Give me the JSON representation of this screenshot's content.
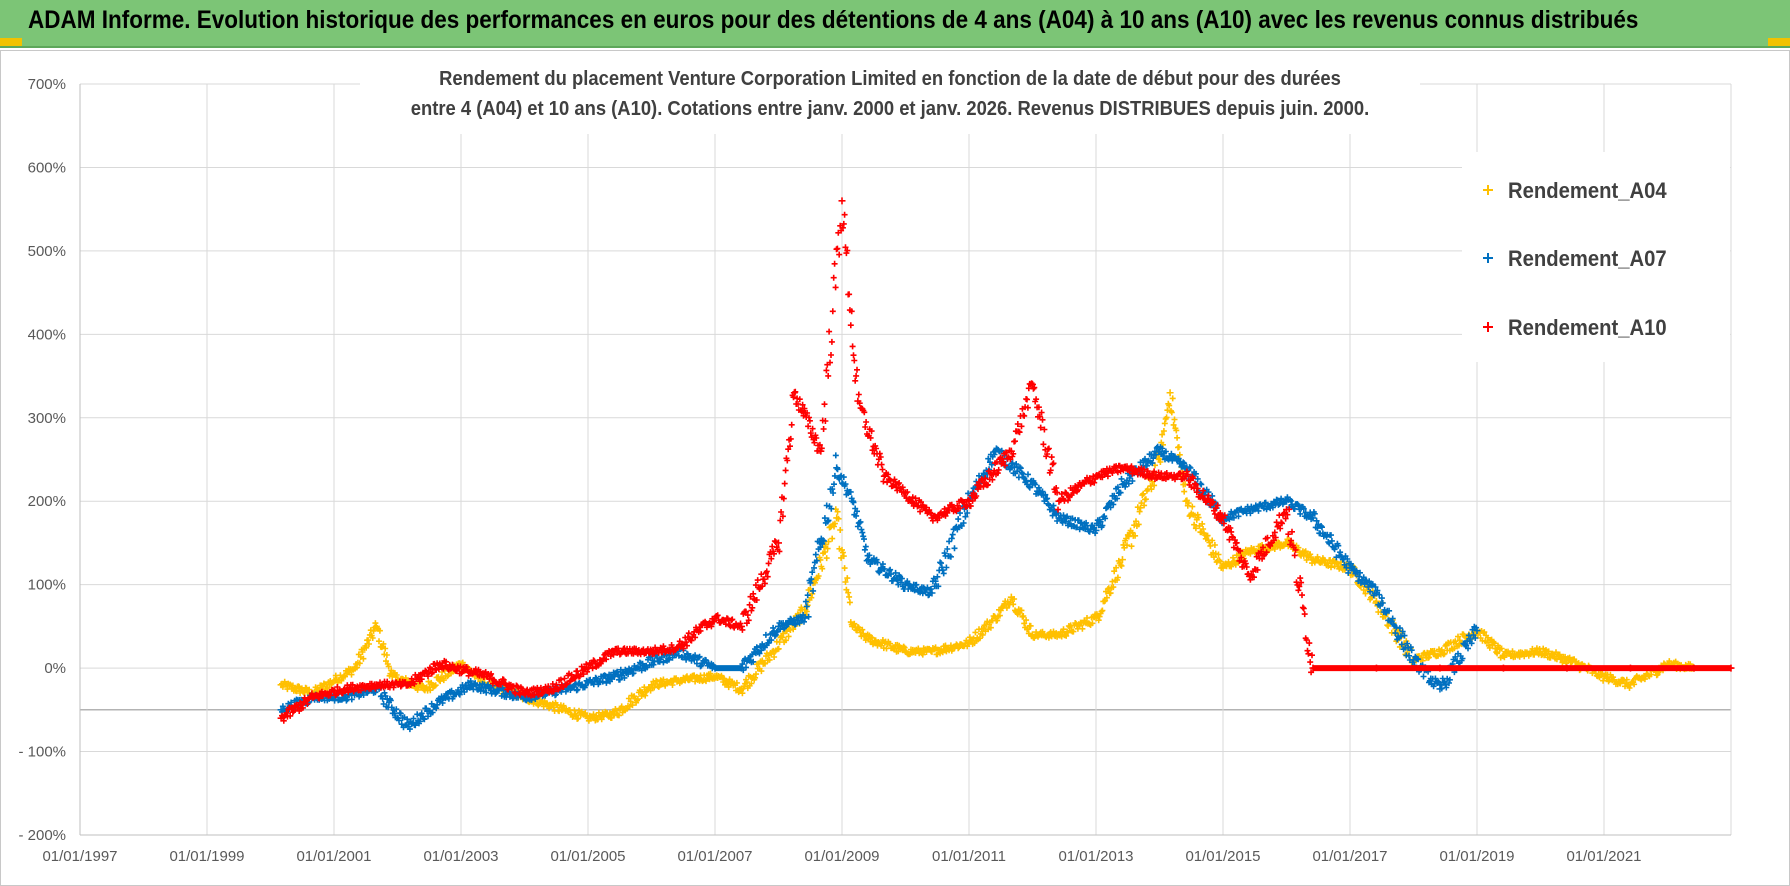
{
  "banner": {
    "title": "ADAM Informe. Evolution historique des performances en euros pour des détentions de 4 ans (A04) à 10 ans (A10) avec les revenus connus distribués"
  },
  "colors": {
    "banner": "#7cc576",
    "A04": "#ffc000",
    "A07": "#0070c0",
    "A10": "#ff0000",
    "grid": "#d9d9d9"
  },
  "chart_data": {
    "type": "scatter",
    "title_line1": "Rendement du placement Venture Corporation Limited en fonction de la date de début pour des durées",
    "title_line2": "entre 4 (A04) et 10 ans (A10). Cotations entre janv. 2000 et janv. 2026. Revenus DISTRIBUES depuis juin. 2000.",
    "xlabel": "",
    "ylabel": "",
    "x_range": [
      "01/01/1997",
      "01/01/2023"
    ],
    "ylim": [
      -200,
      700
    ],
    "y_ticks": [
      "700%",
      "600%",
      "500%",
      "400%",
      "300%",
      "200%",
      "100%",
      "0%",
      "- 100%",
      "- 200%"
    ],
    "x_ticks": [
      "01/01/1997",
      "01/01/1999",
      "01/01/2001",
      "01/01/2003",
      "01/01/2005",
      "01/01/2007",
      "01/01/2009",
      "01/01/2011",
      "01/01/2013",
      "01/01/2015",
      "01/01/2017",
      "01/01/2019",
      "01/01/2021"
    ],
    "grid": true,
    "legend_position": "top-right",
    "series": [
      {
        "name": "Rendement_A04",
        "color": "#ffc000",
        "points": [
          [
            "2000-03",
            -20
          ],
          [
            "2000-09",
            -30
          ],
          [
            "2001-01",
            -15
          ],
          [
            "2001-05",
            0
          ],
          [
            "2001-09",
            50
          ],
          [
            "2001-12",
            -10
          ],
          [
            "2002-06",
            -25
          ],
          [
            "2003-01",
            5
          ],
          [
            "2003-06",
            -20
          ],
          [
            "2004-01",
            -35
          ],
          [
            "2004-06",
            -45
          ],
          [
            "2005-01",
            -60
          ],
          [
            "2005-06",
            -55
          ],
          [
            "2006-01",
            -20
          ],
          [
            "2006-06",
            -15
          ],
          [
            "2007-01",
            -10
          ],
          [
            "2007-06",
            -25
          ],
          [
            "2007-12",
            20
          ],
          [
            "2008-06",
            70
          ],
          [
            "2008-12",
            180
          ],
          [
            "2009-03",
            50
          ],
          [
            "2009-06",
            35
          ],
          [
            "2010-01",
            20
          ],
          [
            "2010-06",
            20
          ],
          [
            "2011-01",
            30
          ],
          [
            "2011-06",
            60
          ],
          [
            "2011-09",
            85
          ],
          [
            "2012-01",
            40
          ],
          [
            "2012-06",
            40
          ],
          [
            "2013-01",
            60
          ],
          [
            "2013-06",
            130
          ],
          [
            "2014-01",
            250
          ],
          [
            "2014-03",
            330
          ],
          [
            "2014-06",
            200
          ],
          [
            "2015-01",
            120
          ],
          [
            "2015-06",
            140
          ],
          [
            "2016-01",
            150
          ],
          [
            "2016-06",
            130
          ],
          [
            "2017-01",
            120
          ],
          [
            "2017-06",
            80
          ],
          [
            "2018-01",
            10
          ],
          [
            "2018-06",
            20
          ],
          [
            "2019-01",
            45
          ],
          [
            "2019-06",
            15
          ],
          [
            "2020-01",
            20
          ],
          [
            "2020-06",
            10
          ],
          [
            "2021-01",
            -10
          ],
          [
            "2021-06",
            -20
          ],
          [
            "2022-01",
            5
          ],
          [
            "2022-06",
            0
          ]
        ]
      },
      {
        "name": "Rendement_A07",
        "color": "#0070c0",
        "points": [
          [
            "2000-03",
            -50
          ],
          [
            "2000-09",
            -35
          ],
          [
            "2001-03",
            -35
          ],
          [
            "2001-09",
            -25
          ],
          [
            "2002-03",
            -70
          ],
          [
            "2002-09",
            -40
          ],
          [
            "2003-03",
            -20
          ],
          [
            "2004-01",
            -35
          ],
          [
            "2004-09",
            -25
          ],
          [
            "2005-06",
            -10
          ],
          [
            "2006-06",
            20
          ],
          [
            "2007-01",
            0
          ],
          [
            "2007-06",
            0
          ],
          [
            "2008-01",
            50
          ],
          [
            "2008-06",
            60
          ],
          [
            "2008-12",
            240
          ],
          [
            "2009-03",
            200
          ],
          [
            "2009-06",
            130
          ],
          [
            "2010-01",
            100
          ],
          [
            "2010-06",
            90
          ],
          [
            "2011-01",
            200
          ],
          [
            "2011-06",
            260
          ],
          [
            "2012-01",
            220
          ],
          [
            "2012-06",
            180
          ],
          [
            "2013-01",
            165
          ],
          [
            "2013-06",
            220
          ],
          [
            "2014-01",
            260
          ],
          [
            "2014-06",
            240
          ],
          [
            "2015-01",
            180
          ],
          [
            "2015-06",
            190
          ],
          [
            "2016-01",
            200
          ],
          [
            "2016-06",
            180
          ],
          [
            "2017-01",
            120
          ],
          [
            "2017-06",
            90
          ],
          [
            "2018-01",
            10
          ],
          [
            "2018-06",
            -25
          ],
          [
            "2019-01",
            45
          ]
        ]
      },
      {
        "name": "Rendement_A10",
        "color": "#ff0000",
        "points": [
          [
            "2000-03",
            -60
          ],
          [
            "2000-09",
            -35
          ],
          [
            "2001-03",
            -25
          ],
          [
            "2001-09",
            -20
          ],
          [
            "2002-03",
            -20
          ],
          [
            "2002-09",
            5
          ],
          [
            "2003-06",
            -10
          ],
          [
            "2004-01",
            -30
          ],
          [
            "2004-06",
            -25
          ],
          [
            "2005-01",
            0
          ],
          [
            "2005-06",
            20
          ],
          [
            "2006-01",
            20
          ],
          [
            "2006-06",
            25
          ],
          [
            "2007-01",
            60
          ],
          [
            "2007-06",
            50
          ],
          [
            "2008-01",
            150
          ],
          [
            "2008-04",
            330
          ],
          [
            "2008-09",
            260
          ],
          [
            "2009-01",
            560
          ],
          [
            "2009-04",
            320
          ],
          [
            "2009-09",
            230
          ],
          [
            "2010-01",
            210
          ],
          [
            "2010-06",
            180
          ],
          [
            "2011-01",
            200
          ],
          [
            "2011-09",
            260
          ],
          [
            "2012-01",
            340
          ],
          [
            "2012-06",
            200
          ],
          [
            "2013-01",
            230
          ],
          [
            "2013-06",
            240
          ],
          [
            "2014-01",
            230
          ],
          [
            "2014-06",
            230
          ],
          [
            "2015-01",
            180
          ],
          [
            "2015-06",
            110
          ],
          [
            "2016-01",
            190
          ],
          [
            "2016-06",
            0
          ],
          [
            "2017-06",
            0
          ],
          [
            "2018-06",
            0
          ],
          [
            "2019-06",
            0
          ],
          [
            "2020-06",
            0
          ],
          [
            "2021-06",
            0
          ],
          [
            "2022-06",
            0
          ],
          [
            "2023-01",
            0
          ]
        ]
      }
    ]
  }
}
